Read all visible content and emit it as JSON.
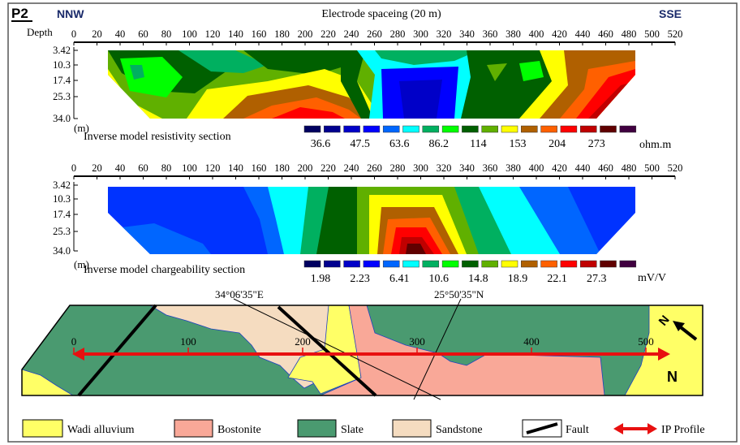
{
  "figure": {
    "panel_label": "P2",
    "left_direction": "NNW",
    "right_direction": "SSE",
    "axis_title": "Electrode spaceing (20 m)",
    "depth_label": "Depth",
    "depth_unit": "(m)",
    "x_ticks": [
      "0",
      "20",
      "40",
      "60",
      "80",
      "100",
      "120",
      "140",
      "160",
      "180",
      "200",
      "220",
      "240",
      "260",
      "280",
      "300",
      "320",
      "340",
      "360",
      "380",
      "400",
      "420",
      "440",
      "460",
      "480",
      "500",
      "520"
    ],
    "depth_ticks": [
      "3.42",
      "10.3",
      "17.4",
      "25.3",
      "34.0"
    ]
  },
  "resistivity": {
    "title": "Inverse model resistivity section",
    "unit": "ohm.m",
    "scale_labels": [
      "36.6",
      "47.5",
      "63.6",
      "86.2",
      "114",
      "153",
      "204",
      "273"
    ]
  },
  "chargeability": {
    "title": "Inverse model chargeability section",
    "unit": "mV/V",
    "scale_labels": [
      "1.98",
      "2.23",
      "6.41",
      "10.6",
      "14.8",
      "18.9",
      "22.1",
      "27.3"
    ]
  },
  "palette": [
    "#000060",
    "#00008f",
    "#0000c8",
    "#0000ff",
    "#0066ff",
    "#00ffff",
    "#00b060",
    "#00ff00",
    "#006000",
    "#60b000",
    "#ffff00",
    "#b06000",
    "#ff6000",
    "#ff0000",
    "#c00000",
    "#600000",
    "#400040"
  ],
  "map": {
    "longitude_label": "34°06'35\"E",
    "latitude_label": "25°50'35\"N",
    "profile_ticks": [
      "0",
      "100",
      "200",
      "300",
      "400",
      "500"
    ],
    "north_label": "N",
    "colors": {
      "wadi": "#ffff66",
      "bostonite": "#f9a898",
      "slate": "#4a9a70",
      "sandstone": "#f5dcc0",
      "profile": "#e81010"
    }
  },
  "legend": [
    {
      "label": "Wadi alluvium"
    },
    {
      "label": "Bostonite"
    },
    {
      "label": "Slate"
    },
    {
      "label": "Sandstone"
    },
    {
      "label": "Fault"
    },
    {
      "label": "IP Profile"
    }
  ]
}
